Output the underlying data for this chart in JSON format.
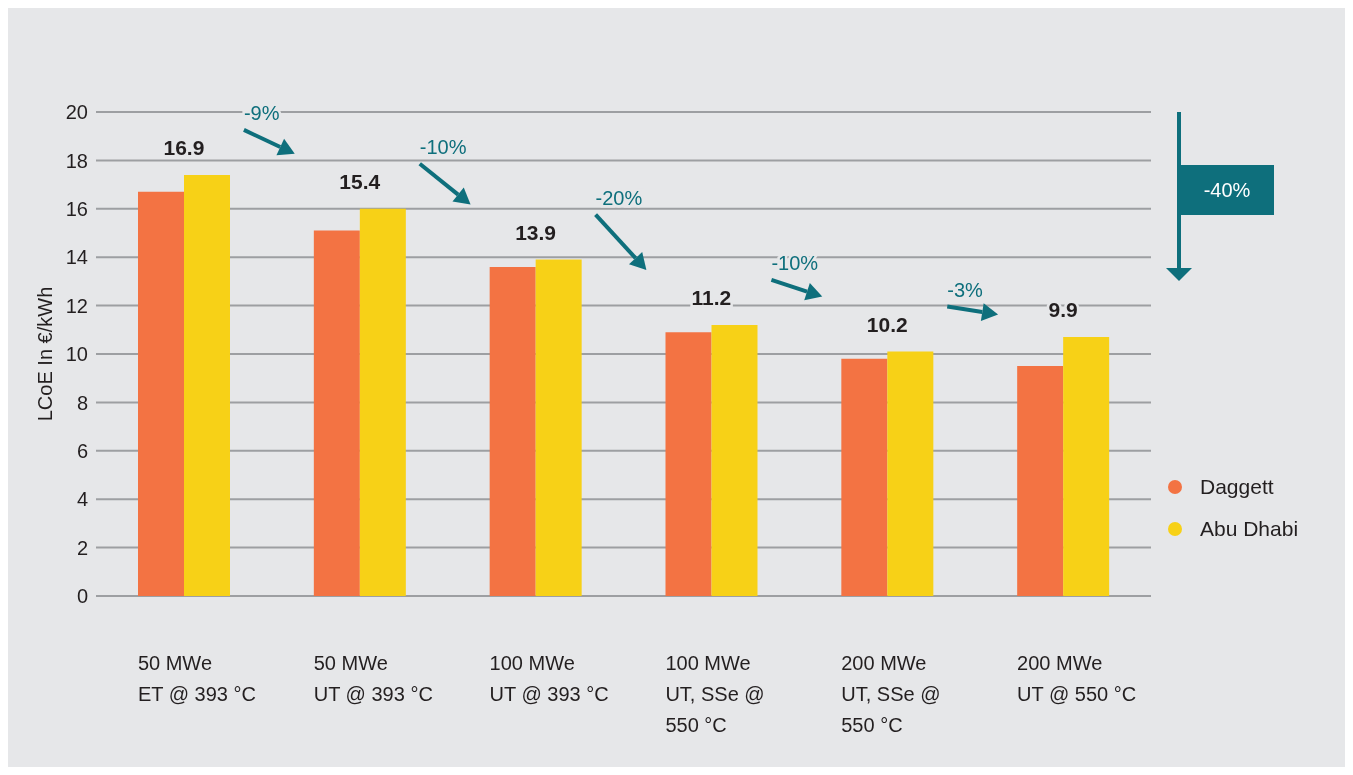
{
  "chart_data": {
    "type": "bar",
    "ylabel": "LCoE In €/kWh",
    "categories": [
      "50 MWe ET @ 393 °C",
      "50 MWe UT @ 393 °C",
      "100 MWe UT @ 393 °C",
      "100 MWe UT, SSe @ 550 °C",
      "200 MWe UT, SSe @ 550 °C",
      "200 MWe UT @ 550 °C"
    ],
    "series": [
      {
        "name": "Daggett",
        "color": "#f37343",
        "values": [
          16.7,
          15.1,
          13.6,
          10.9,
          9.8,
          9.5
        ]
      },
      {
        "name": "Abu Dhabi",
        "color": "#f7d117",
        "values": [
          17.4,
          16.0,
          13.9,
          11.2,
          10.1,
          10.7
        ]
      }
    ],
    "ylim": [
      0,
      20
    ],
    "yticks": [
      0,
      2,
      4,
      6,
      8,
      10,
      12,
      14,
      16,
      18,
      20
    ],
    "grid": "y",
    "legend": "right",
    "annotations": [
      "16.9",
      "15.4",
      "13.9",
      "11.2",
      "10.2",
      "9.9",
      "-9%",
      "-10%",
      "-20%",
      "-10%",
      "-3%",
      "-40%"
    ]
  }
}
